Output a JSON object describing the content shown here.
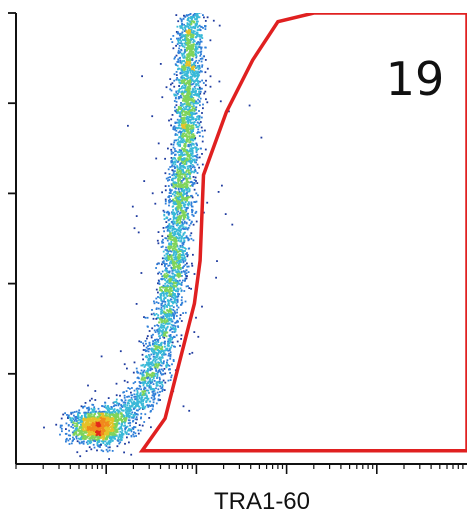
{
  "chart_data": {
    "type": "scatter",
    "subtype": "flow-cytometry-density-plot",
    "title": "",
    "xlabel": "TRA1-60",
    "ylabel": "",
    "x_scale": "log",
    "y_scale": "log",
    "xlim": [
      1,
      100000
    ],
    "ylim": [
      1,
      100000
    ],
    "grid": false,
    "legend": "none",
    "colormap": [
      "#1f3b9f",
      "#2f7fd8",
      "#39b9d8",
      "#7fd45a",
      "#e6c229",
      "#f08a1c",
      "#e42a1a"
    ],
    "x_ticks": [
      10,
      100,
      1000,
      10000,
      100000
    ],
    "y_ticks": [
      10,
      100,
      1000,
      10000,
      100000
    ],
    "point_cloud": {
      "description_free": true,
      "ridge": [
        {
          "x": 4.5,
          "y": 2.5
        },
        {
          "x": 7.0,
          "y": 2.6
        },
        {
          "x": 14.0,
          "y": 3.6
        },
        {
          "x": 25.0,
          "y": 6.0
        },
        {
          "x": 36.0,
          "y": 14.0
        },
        {
          "x": 45.0,
          "y": 40.0
        },
        {
          "x": 55.0,
          "y": 150.0
        },
        {
          "x": 64.0,
          "y": 600.0
        },
        {
          "x": 72.0,
          "y": 2500.0
        },
        {
          "x": 78.0,
          "y": 9000.0
        },
        {
          "x": 82.0,
          "y": 30000.0
        },
        {
          "x": 86.0,
          "y": 100000.0
        }
      ],
      "peak": {
        "x": 8.0,
        "y": 2.6
      }
    },
    "gate": {
      "color": "#e02020",
      "vertices": [
        {
          "x": 2000,
          "y": 100000
        },
        {
          "x": 800,
          "y": 80000
        },
        {
          "x": 420,
          "y": 30000
        },
        {
          "x": 215,
          "y": 8000
        },
        {
          "x": 120,
          "y": 1600
        },
        {
          "x": 110,
          "y": 180
        },
        {
          "x": 95,
          "y": 60
        },
        {
          "x": 45,
          "y": 3.2
        },
        {
          "x": 25,
          "y": 1.4
        },
        {
          "x": 100000,
          "y": 1.4
        },
        {
          "x": 100000,
          "y": 100000
        }
      ]
    },
    "annotations": [
      {
        "text": "19",
        "x": 5000,
        "y": 20000
      }
    ]
  }
}
